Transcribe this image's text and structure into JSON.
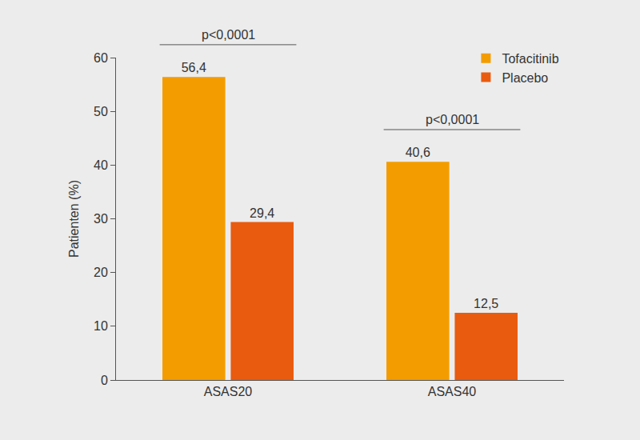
{
  "chart_data": {
    "type": "bar",
    "y_label": "Patienten (%)",
    "categories": [
      "ASAS20",
      "ASAS40"
    ],
    "series": [
      {
        "name": "Tofacitinib",
        "color": "#f39c00",
        "values": [
          56.4,
          40.6
        ],
        "value_labels": [
          "56,4",
          "40,6"
        ]
      },
      {
        "name": "Placebo",
        "color": "#e95b0f",
        "values": [
          29.4,
          12.5
        ],
        "value_labels": [
          "29,4",
          "12,5"
        ]
      }
    ],
    "annotations": [
      {
        "text": "p<0,0001",
        "category": "ASAS20"
      },
      {
        "text": "p<0,0001",
        "category": "ASAS40"
      }
    ],
    "ylim": [
      0,
      60
    ],
    "yticks": [
      0,
      10,
      20,
      30,
      40,
      50,
      60
    ],
    "grid": false,
    "legend": "top right",
    "data_labels": true
  }
}
